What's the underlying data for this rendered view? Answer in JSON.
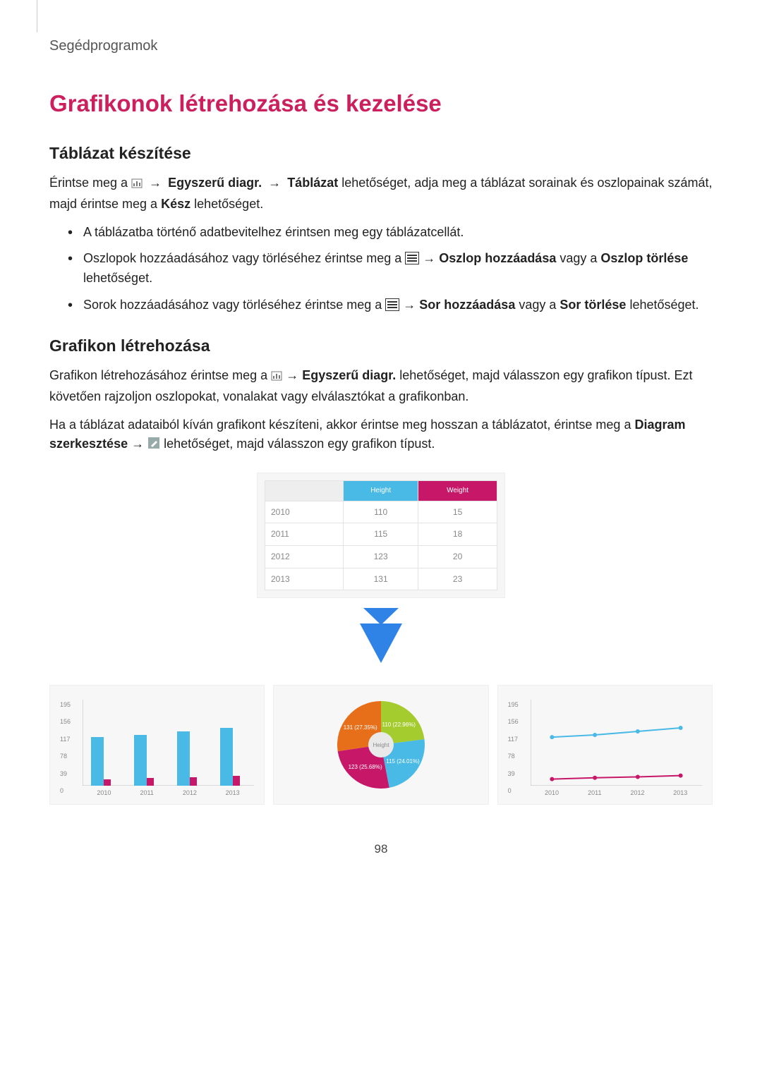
{
  "breadcrumb": "Segédprogramok",
  "title": "Grafikonok létrehozása és kezelése",
  "section1": {
    "heading": "Táblázat készítése",
    "para_parts": {
      "p1a": "Érintse meg a ",
      "p1b": " → ",
      "p1_bold1": "Egyszerű diagr.",
      "p1c": " → ",
      "p1_bold2": "Táblázat",
      "p1d": " lehetőséget, adja meg a táblázat sorainak és oszlopainak számát, majd érintse meg a ",
      "p1_bold3": "Kész",
      "p1e": " lehetőséget."
    },
    "bullets": {
      "b1": "A táblázatba történő adatbevitelhez érintsen meg egy táblázatcellát.",
      "b2a": "Oszlopok hozzáadásához vagy törléséhez érintse meg a ",
      "b2b": " → ",
      "b2_bold1": "Oszlop hozzáadása",
      "b2c": " vagy a ",
      "b2_bold2": "Oszlop törlése",
      "b2d": " lehetőséget.",
      "b3a": "Sorok hozzáadásához vagy törléséhez érintse meg a ",
      "b3b": " → ",
      "b3_bold1": "Sor hozzáadása",
      "b3c": " vagy a ",
      "b3_bold2": "Sor törlése",
      "b3d": " lehetőséget."
    }
  },
  "section2": {
    "heading": "Grafikon létrehozása",
    "p1a": "Grafikon létrehozásához érintse meg a ",
    "p1b": " → ",
    "p1_bold1": "Egyszerű diagr.",
    "p1c": " lehetőséget, majd válasszon egy grafikon típust. Ezt követően rajzoljon oszlopokat, vonalakat vagy elválasztókat a grafikonban.",
    "p2a": "Ha a táblázat adataiból kíván grafikont készíteni, akkor érintse meg hosszan a táblázatot, érintse meg a ",
    "p2_bold1": "Diagram szerkesztése",
    "p2b": " → ",
    "p2c": " lehetőséget, majd válasszon egy grafikon típust."
  },
  "data_table": {
    "header_colors": {
      "col1": "#49b9e6",
      "col2": "#c71768"
    },
    "headers": [
      "",
      "Height",
      "Weight"
    ],
    "rows": [
      [
        "2010",
        "110",
        "15"
      ],
      [
        "2011",
        "115",
        "18"
      ],
      [
        "2012",
        "123",
        "20"
      ],
      [
        "2013",
        "131",
        "23"
      ]
    ]
  },
  "charts": {
    "y_ticks": [
      "195",
      "156",
      "117",
      "78",
      "39",
      "0"
    ],
    "x_cats": [
      "2010",
      "2011",
      "2012",
      "2013"
    ],
    "bar": {
      "type": "bar",
      "ymax": 195,
      "series": [
        {
          "color": "#49b9e6",
          "values": [
            110,
            115,
            123,
            131
          ]
        },
        {
          "color": "#c71768",
          "values": [
            15,
            18,
            20,
            23
          ]
        }
      ]
    },
    "pie": {
      "type": "pie",
      "slices": [
        {
          "label": "110 (22.96%)",
          "value": 110,
          "color": "#a4cc2f"
        },
        {
          "label": "115 (24.01%)",
          "value": 115,
          "color": "#49b9e6"
        },
        {
          "label": "123 (25.68%)",
          "value": 123,
          "color": "#c71768"
        },
        {
          "label": "131 (27.35%)",
          "value": 131,
          "color": "#e86f1a"
        }
      ],
      "center_label": "Height",
      "center_color": "#e9e9e9"
    },
    "line": {
      "type": "line",
      "ymax": 195,
      "series": [
        {
          "color": "#49b9e6",
          "values": [
            110,
            115,
            123,
            131
          ]
        },
        {
          "color": "#c71768",
          "values": [
            15,
            18,
            20,
            23
          ]
        }
      ]
    }
  },
  "arrow_color": "#2f83e6",
  "page_number": "98"
}
